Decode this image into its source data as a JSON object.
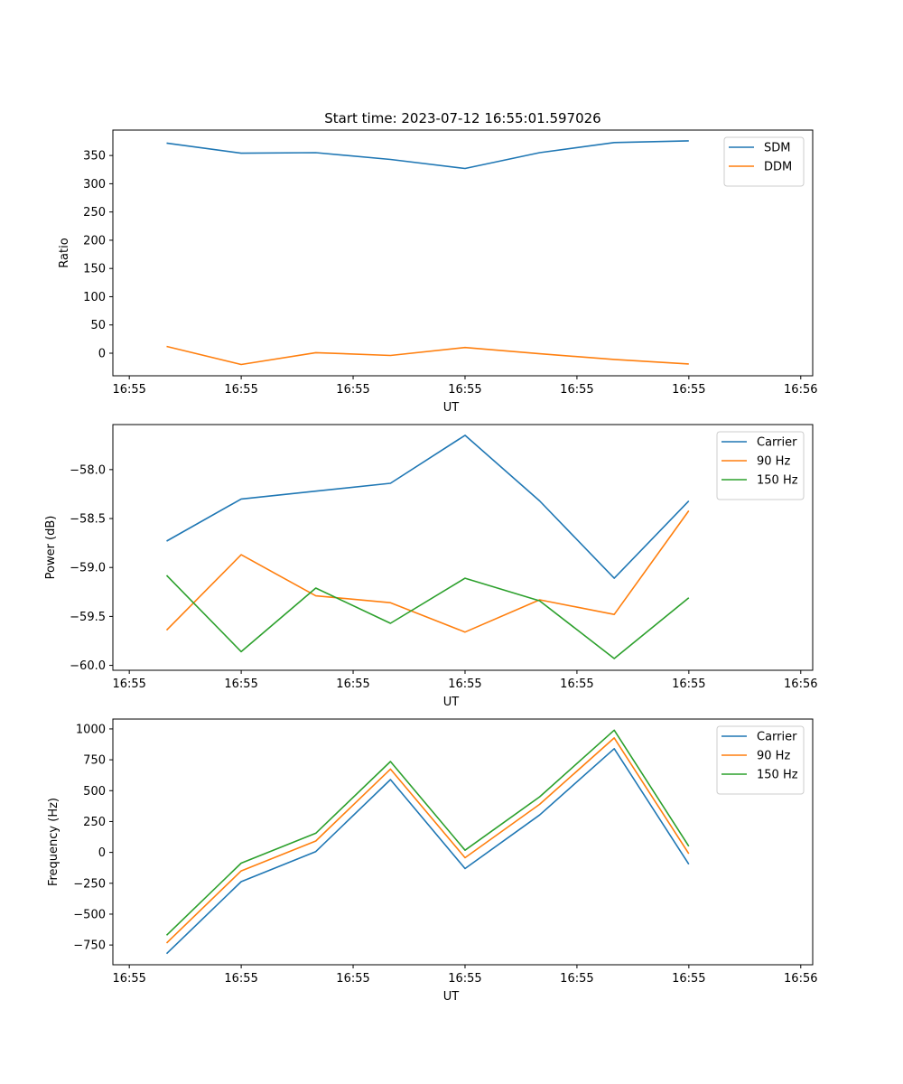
{
  "title": "Start time: 2023-07-12 16:55:01.597026",
  "chart_data": [
    {
      "type": "line",
      "xlabel": "UT",
      "ylabel": "Ratio",
      "x_index": [
        0,
        1,
        2,
        3,
        4,
        5,
        6,
        7
      ],
      "xlim": [
        -0.72,
        8.66
      ],
      "x_ticks": [
        -0.5,
        1.0,
        2.5,
        4.0,
        5.5,
        7.0,
        8.5
      ],
      "x_tick_labels": [
        "16:55",
        "16:55",
        "16:55",
        "16:55",
        "16:55",
        "16:55",
        "16:56"
      ],
      "ylim": [
        -40,
        395
      ],
      "y_ticks": [
        0,
        50,
        100,
        150,
        200,
        250,
        300,
        350
      ],
      "legend": "top-right",
      "series": [
        {
          "name": "SDM",
          "color": "#1f77b4",
          "values": [
            372,
            354,
            355,
            343,
            327,
            355,
            373,
            376
          ]
        },
        {
          "name": "DDM",
          "color": "#ff7f0e",
          "values": [
            12,
            -20,
            1,
            -4,
            10,
            -1,
            -11,
            -19
          ]
        }
      ]
    },
    {
      "type": "line",
      "xlabel": "UT",
      "ylabel": "Power (dB)",
      "x_index": [
        0,
        1,
        2,
        3,
        4,
        5,
        6,
        7
      ],
      "xlim": [
        -0.72,
        8.66
      ],
      "x_ticks": [
        -0.5,
        1.0,
        2.5,
        4.0,
        5.5,
        7.0,
        8.5
      ],
      "x_tick_labels": [
        "16:55",
        "16:55",
        "16:55",
        "16:55",
        "16:55",
        "16:55",
        "16:56"
      ],
      "ylim": [
        -60.05,
        -57.54
      ],
      "y_ticks": [
        -60.0,
        -59.5,
        -59.0,
        -58.5,
        -58.0
      ],
      "y_tick_labels": [
        "−60.0",
        "−59.5",
        "−59.0",
        "−58.5",
        "−58.0"
      ],
      "legend": "top-right",
      "series": [
        {
          "name": "Carrier",
          "color": "#1f77b4",
          "values": [
            -58.73,
            -58.3,
            -58.22,
            -58.14,
            -57.65,
            -58.32,
            -59.11,
            -58.32
          ]
        },
        {
          "name": "90 Hz",
          "color": "#ff7f0e",
          "values": [
            -59.64,
            -58.87,
            -59.29,
            -59.36,
            -59.66,
            -59.33,
            -59.48,
            -58.42
          ]
        },
        {
          "name": "150 Hz",
          "color": "#2ca02c",
          "values": [
            -59.08,
            -59.86,
            -59.21,
            -59.57,
            -59.11,
            -59.34,
            -59.93,
            -59.31
          ]
        }
      ]
    },
    {
      "type": "line",
      "xlabel": "UT",
      "ylabel": "Frequency (Hz)",
      "x_index": [
        0,
        1,
        2,
        3,
        4,
        5,
        6,
        7
      ],
      "xlim": [
        -0.72,
        8.66
      ],
      "x_ticks": [
        -0.5,
        1.0,
        2.5,
        4.0,
        5.5,
        7.0,
        8.5
      ],
      "x_tick_labels": [
        "16:55",
        "16:55",
        "16:55",
        "16:55",
        "16:55",
        "16:55",
        "16:56"
      ],
      "ylim": [
        -910,
        1080
      ],
      "y_ticks": [
        -750,
        -500,
        -250,
        0,
        250,
        500,
        750,
        1000
      ],
      "y_tick_labels": [
        "−750",
        "−500",
        "−250",
        "0",
        "250",
        "500",
        "750",
        "1000"
      ],
      "legend": "top-right",
      "series": [
        {
          "name": "Carrier",
          "color": "#1f77b4",
          "values": [
            -820,
            -237,
            7,
            590,
            -131,
            303,
            840,
            -96
          ]
        },
        {
          "name": "90 Hz",
          "color": "#ff7f0e",
          "values": [
            -734,
            -150,
            92,
            675,
            -43,
            389,
            927,
            -11
          ]
        },
        {
          "name": "150 Hz",
          "color": "#2ca02c",
          "values": [
            -671,
            -87,
            155,
            736,
            18,
            450,
            990,
            50
          ]
        }
      ]
    }
  ]
}
